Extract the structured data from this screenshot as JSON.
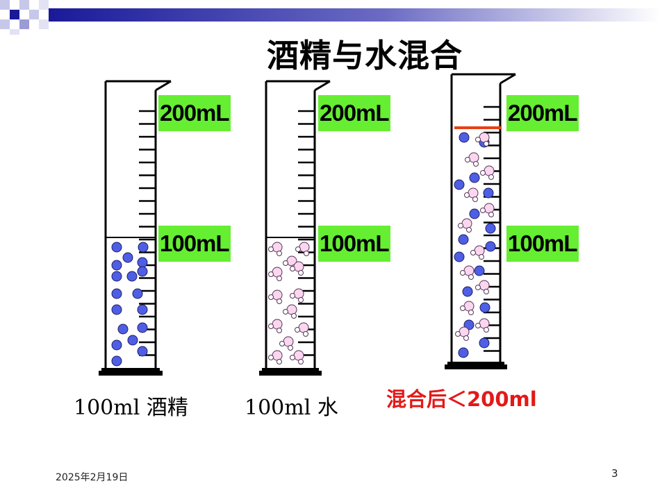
{
  "slide": {
    "title": "酒精与水混合",
    "footer_date": "2025年2月19日",
    "page_number": "3"
  },
  "cylinders": [
    {
      "content": "alcohol",
      "label_top": "200mL",
      "label_mid": "100mL",
      "caption": "100ml 酒精"
    },
    {
      "content": "water",
      "label_top": "200mL",
      "label_mid": "100mL",
      "caption": "100ml 水"
    },
    {
      "content": "mixture",
      "label_top": "200mL",
      "label_mid": "100mL",
      "caption": "混合后＜200ml"
    }
  ],
  "colors": {
    "label_bg": "#66ee33",
    "alcohol_particle": "#4f5fe3",
    "water_particle": "#fbd6ef",
    "mark_line": "#e64016",
    "result_text": "#e31919"
  }
}
